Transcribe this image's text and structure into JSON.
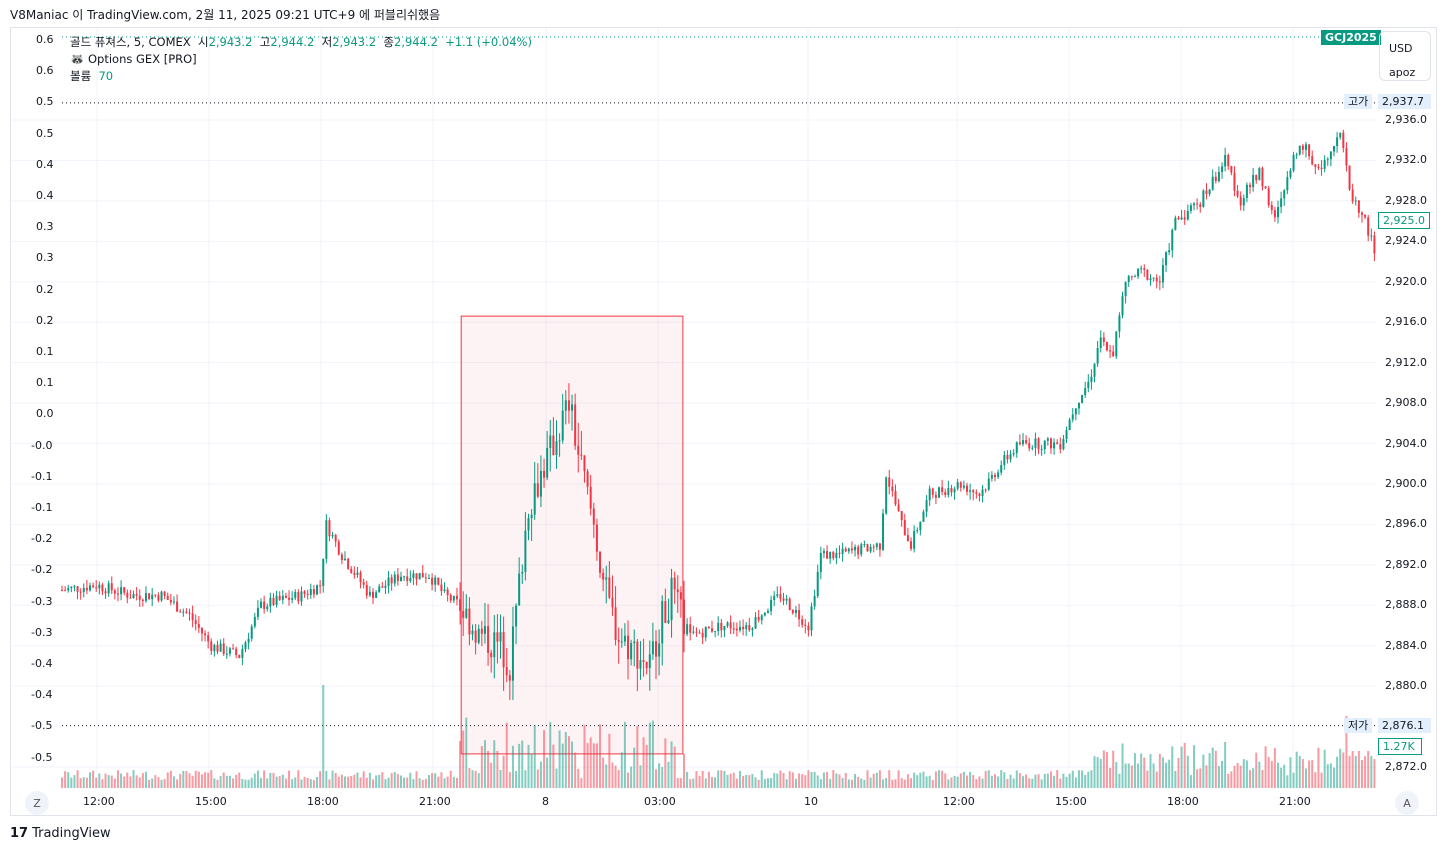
{
  "header": {
    "published": "V8Maniac 이 TradingView.com, 2월 11, 2025 09:21 UTC+9 에 퍼블리쉬했음"
  },
  "legend": {
    "symbol": "골드 퓨쳐스, 5, COMEX",
    "o_label": "시",
    "o": "2,943.2",
    "h_label": "고",
    "h": "2,944.2",
    "l_label": "저",
    "l": "2,943.2",
    "c_label": "종",
    "c": "2,944.2",
    "change": "+1.1 (+0.04%)",
    "indicator": "Options GEX [PRO]",
    "volume_label": "볼륨",
    "volume": "70"
  },
  "ticker_badge": "GCJ2025",
  "currency": {
    "unit": "USD",
    "sub": "apoz"
  },
  "high_tag": {
    "label": "고가",
    "value": "2,937.7"
  },
  "low_tag": {
    "label": "저가",
    "value": "2,876.1"
  },
  "last_price": "2,925.0",
  "volume_tag": "1.27K",
  "axis_buttons": {
    "left": "Z",
    "right": "A"
  },
  "brand": "TradingView",
  "colors": {
    "up": "#089981",
    "down": "#f23645",
    "box": "#f23645"
  },
  "chart_data": {
    "type": "candlestick",
    "left_axis": [
      "0.6",
      "0.6",
      "0.5",
      "0.5",
      "0.4",
      "0.4",
      "0.3",
      "0.3",
      "0.2",
      "0.2",
      "0.1",
      "0.1",
      "0.0",
      "-0.0",
      "-0.1",
      "-0.1",
      "-0.2",
      "-0.2",
      "-0.3",
      "-0.3",
      "-0.4",
      "-0.4",
      "-0.5",
      "-0.5"
    ],
    "right_axis": [
      "2,936.0",
      "2,932.0",
      "2,928.0",
      "2,924.0",
      "2,920.0",
      "2,916.0",
      "2,912.0",
      "2,908.0",
      "2,904.0",
      "2,900.0",
      "2,896.0",
      "2,892.0",
      "2,888.0",
      "2,884.0",
      "2,880.0",
      "2,872.0"
    ],
    "x_ticks": [
      "12:00",
      "15:00",
      "18:00",
      "21:00",
      "8",
      "03:00",
      "10",
      "12:00",
      "15:00",
      "18:00",
      "21:00"
    ],
    "ylim": [
      2870,
      2940
    ],
    "close_path_bar_index_price": [
      [
        0,
        2889.5
      ],
      [
        11,
        2890
      ],
      [
        22,
        2889
      ],
      [
        32,
        2889
      ],
      [
        41,
        2887
      ],
      [
        48,
        2884
      ],
      [
        57,
        2883
      ],
      [
        64,
        2888
      ],
      [
        77,
        2889
      ],
      [
        83,
        2890
      ],
      [
        85,
        2896
      ],
      [
        90,
        2893
      ],
      [
        99,
        2889
      ],
      [
        109,
        2891
      ],
      [
        118,
        2891
      ],
      [
        123,
        2889
      ],
      [
        128,
        2888
      ],
      [
        134,
        2885
      ],
      [
        141,
        2884
      ],
      [
        144,
        2882
      ],
      [
        147,
        2890
      ],
      [
        150,
        2898
      ],
      [
        154,
        2901
      ],
      [
        158,
        2904
      ],
      [
        163,
        2908
      ],
      [
        166,
        2903
      ],
      [
        171,
        2896
      ],
      [
        175,
        2889
      ],
      [
        179,
        2885
      ],
      [
        186,
        2883
      ],
      [
        189,
        2882
      ],
      [
        192,
        2886
      ],
      [
        196,
        2889
      ],
      [
        202,
        2885
      ],
      [
        212,
        2886
      ],
      [
        221,
        2886
      ],
      [
        231,
        2889
      ],
      [
        240,
        2886
      ],
      [
        244,
        2893
      ],
      [
        250,
        2893
      ],
      [
        263,
        2894
      ],
      [
        265,
        2901
      ],
      [
        270,
        2896
      ],
      [
        273,
        2894
      ],
      [
        279,
        2899
      ],
      [
        289,
        2900
      ],
      [
        295,
        2899
      ],
      [
        302,
        2902
      ],
      [
        308,
        2904
      ],
      [
        321,
        2904
      ],
      [
        326,
        2908
      ],
      [
        330,
        2910
      ],
      [
        334,
        2914
      ],
      [
        338,
        2913
      ],
      [
        342,
        2920
      ],
      [
        347,
        2921
      ],
      [
        353,
        2920
      ],
      [
        358,
        2926
      ],
      [
        366,
        2928
      ],
      [
        374,
        2932
      ],
      [
        379,
        2928
      ],
      [
        385,
        2931
      ],
      [
        390,
        2926
      ],
      [
        398,
        2934
      ],
      [
        404,
        2931
      ],
      [
        411,
        2935
      ],
      [
        414,
        2929
      ],
      [
        419,
        2926
      ],
      [
        422,
        2923
      ]
    ],
    "highlight_box": {
      "from_bar": 129,
      "to_bar": 199,
      "price_top": 2916.6,
      "price_bottom": 2873.3
    }
  }
}
